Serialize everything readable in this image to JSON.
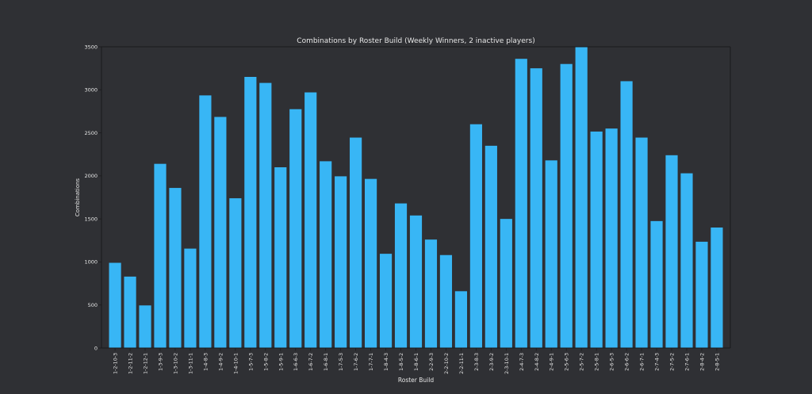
{
  "colors": {
    "background": "#2f3034",
    "plot_background": "#2f3034",
    "bar": "#38b6f5",
    "axis": "#1a1a1c",
    "text": "#e6e6e6"
  },
  "chart_data": {
    "type": "bar",
    "title": "Combinations by Roster Build (Weekly Winners, 2 inactive players)",
    "xlabel": "Roster Build",
    "ylabel": "Combinations",
    "ylim": [
      0,
      3500
    ],
    "yticks": [
      0,
      500,
      1000,
      1500,
      2000,
      2500,
      3000,
      3500
    ],
    "grid": false,
    "legend": "none",
    "categories": [
      "1-2-10-3",
      "1-2-11-2",
      "1-2-12-1",
      "1-3-9-3",
      "1-3-10-2",
      "1-3-11-1",
      "1-4-8-3",
      "1-4-9-2",
      "1-4-10-1",
      "1-5-7-3",
      "1-5-8-2",
      "1-5-9-1",
      "1-6-6-3",
      "1-6-7-2",
      "1-6-8-1",
      "1-7-5-3",
      "1-7-6-2",
      "1-7-7-1",
      "1-8-4-3",
      "1-8-5-2",
      "1-8-6-1",
      "2-2-9-3",
      "2-2-10-2",
      "2-2-11-1",
      "2-3-8-3",
      "2-3-9-2",
      "2-3-10-1",
      "2-4-7-3",
      "2-4-8-2",
      "2-4-9-1",
      "2-5-6-3",
      "2-5-7-2",
      "2-5-8-1",
      "2-6-5-3",
      "2-6-6-2",
      "2-6-7-1",
      "2-7-4-3",
      "2-7-5-2",
      "2-7-6-1",
      "2-8-4-2",
      "2-8-5-1"
    ],
    "values": [
      990,
      830,
      495,
      2140,
      1860,
      1155,
      2935,
      2685,
      1740,
      3150,
      3080,
      2100,
      2775,
      2970,
      2170,
      1995,
      2445,
      1965,
      1095,
      1680,
      1540,
      1260,
      1080,
      660,
      2600,
      2350,
      1500,
      3360,
      3250,
      2180,
      3300,
      3500,
      2515,
      2550,
      3100,
      2445,
      1475,
      2240,
      2030,
      1235,
      1400
    ]
  }
}
